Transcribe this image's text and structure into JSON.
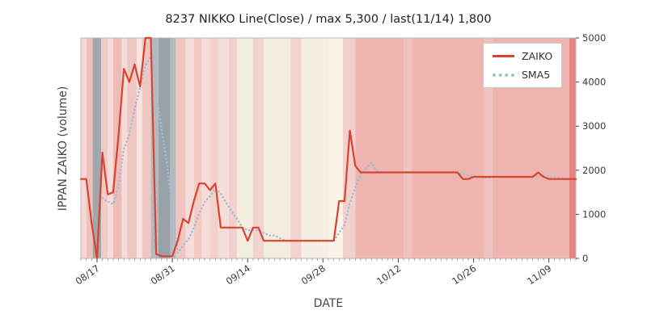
{
  "chart_data": {
    "type": "line",
    "title": "8237 NIKKO Line(Close) / max 5,300 / last(11/14) 1,800",
    "xlabel": "DATE",
    "ylabel": "IPPAN ZAIKO (volume)",
    "ylim": [
      0,
      5000
    ],
    "yticks": [
      0,
      1000,
      2000,
      3000,
      4000,
      5000
    ],
    "grid": false,
    "legend_position": "upper right",
    "xtick_labels": [
      "08/17",
      "08/31",
      "09/14",
      "09/28",
      "10/12",
      "10/26",
      "11/09"
    ],
    "xtick_indices": [
      3,
      17,
      31,
      45,
      59,
      73,
      87
    ],
    "dates": [
      "08/14",
      "08/15",
      "08/16",
      "08/17",
      "08/18",
      "08/19",
      "08/20",
      "08/21",
      "08/22",
      "08/23",
      "08/24",
      "08/25",
      "08/26",
      "08/27",
      "08/28",
      "08/29",
      "08/30",
      "08/31",
      "09/01",
      "09/02",
      "09/03",
      "09/04",
      "09/05",
      "09/06",
      "09/07",
      "09/08",
      "09/09",
      "09/10",
      "09/11",
      "09/12",
      "09/13",
      "09/14",
      "09/15",
      "09/16",
      "09/17",
      "09/18",
      "09/19",
      "09/20",
      "09/21",
      "09/22",
      "09/23",
      "09/24",
      "09/25",
      "09/26",
      "09/27",
      "09/28",
      "09/29",
      "09/30",
      "10/01",
      "10/02",
      "10/03",
      "10/04",
      "10/05",
      "10/06",
      "10/07",
      "10/08",
      "10/09",
      "10/10",
      "10/11",
      "10/12",
      "10/13",
      "10/14",
      "10/15",
      "10/16",
      "10/17",
      "10/18",
      "10/19",
      "10/20",
      "10/21",
      "10/22",
      "10/23",
      "10/24",
      "10/25",
      "10/26",
      "10/27",
      "10/28",
      "10/29",
      "10/30",
      "10/31",
      "11/01",
      "11/02",
      "11/03",
      "11/04",
      "11/05",
      "11/06",
      "11/07",
      "11/08",
      "11/09",
      "11/10",
      "11/11",
      "11/12",
      "11/13",
      "11/14"
    ],
    "series": [
      {
        "name": "ZAIKO",
        "style": "solid",
        "color": "#d9432f",
        "values": [
          1800,
          1800,
          800,
          0,
          2400,
          1450,
          1500,
          2800,
          4300,
          4000,
          4400,
          3900,
          5300,
          5300,
          100,
          50,
          50,
          50,
          400,
          900,
          800,
          1300,
          1700,
          1700,
          1550,
          1700,
          700,
          700,
          700,
          700,
          700,
          400,
          700,
          700,
          400,
          400,
          400,
          400,
          400,
          400,
          400,
          400,
          400,
          400,
          400,
          400,
          400,
          400,
          1300,
          1300,
          2900,
          2100,
          1950,
          1950,
          1950,
          1950,
          1950,
          1950,
          1950,
          1950,
          1950,
          1950,
          1950,
          1950,
          1950,
          1950,
          1950,
          1950,
          1950,
          1950,
          1950,
          1800,
          1800,
          1850,
          1850,
          1850,
          1850,
          1850,
          1850,
          1850,
          1850,
          1850,
          1850,
          1850,
          1850,
          1950,
          1850,
          1800,
          1800,
          1800,
          1800,
          1800,
          1800
        ]
      },
      {
        "name": "SMA5",
        "style": "dotted",
        "color": "#9fbcd8",
        "derived": "5-period simple moving average of ZAIKO"
      }
    ],
    "background_bands": [
      {
        "from": 0,
        "to": 1,
        "color": "#f5d8d4"
      },
      {
        "from": 1,
        "to": 2.2,
        "color": "#eec1bc"
      },
      {
        "from": 2.2,
        "to": 3.8,
        "color": "#a0a7ad"
      },
      {
        "from": 3.8,
        "to": 5,
        "color": "#f2cac6"
      },
      {
        "from": 5,
        "to": 6,
        "color": "#f7ddd9"
      },
      {
        "from": 6,
        "to": 7.6,
        "color": "#eebcb7"
      },
      {
        "from": 7.6,
        "to": 8.6,
        "color": "#f7ddd9"
      },
      {
        "from": 8.6,
        "to": 10.4,
        "color": "#f0c6c2"
      },
      {
        "from": 10.4,
        "to": 11.4,
        "color": "#f9e3df"
      },
      {
        "from": 11.4,
        "to": 13,
        "color": "#f0c6c2"
      },
      {
        "from": 13,
        "to": 14.4,
        "color": "#b3b9bf"
      },
      {
        "from": 14.4,
        "to": 16.6,
        "color": "#99a1a8"
      },
      {
        "from": 16.6,
        "to": 17.7,
        "color": "#b3b9bf"
      },
      {
        "from": 17.7,
        "to": 19.5,
        "color": "#f0c6c2"
      },
      {
        "from": 19.5,
        "to": 21,
        "color": "#f7ddd9"
      },
      {
        "from": 21,
        "to": 22.5,
        "color": "#f2cac6"
      },
      {
        "from": 22.5,
        "to": 24,
        "color": "#f7ddd9"
      },
      {
        "from": 24,
        "to": 25.5,
        "color": "#f2d0cc"
      },
      {
        "from": 25.5,
        "to": 27.5,
        "color": "#f7ddd9"
      },
      {
        "from": 27.5,
        "to": 29,
        "color": "#f2d0cc"
      },
      {
        "from": 29,
        "to": 32,
        "color": "#f5ece0"
      },
      {
        "from": 32,
        "to": 34,
        "color": "#f3d3cf"
      },
      {
        "from": 34,
        "to": 39,
        "color": "#f5ece0"
      },
      {
        "from": 39,
        "to": 41,
        "color": "#f3d3cf"
      },
      {
        "from": 41,
        "to": 46,
        "color": "#f6efe3"
      },
      {
        "from": 46,
        "to": 48.7,
        "color": "#f9f3e8"
      },
      {
        "from": 48.7,
        "to": 51,
        "color": "#f2d0cc"
      },
      {
        "from": 51,
        "to": 60,
        "color": "#eeb4af"
      },
      {
        "from": 60,
        "to": 61.5,
        "color": "#f2c2be"
      },
      {
        "from": 61.5,
        "to": 75,
        "color": "#eeb4af"
      },
      {
        "from": 75,
        "to": 76.5,
        "color": "#f2c2be"
      },
      {
        "from": 76.5,
        "to": 90.8,
        "color": "#eeb4af"
      },
      {
        "from": 90.8,
        "to": 92,
        "color": "#e4867f"
      }
    ]
  }
}
